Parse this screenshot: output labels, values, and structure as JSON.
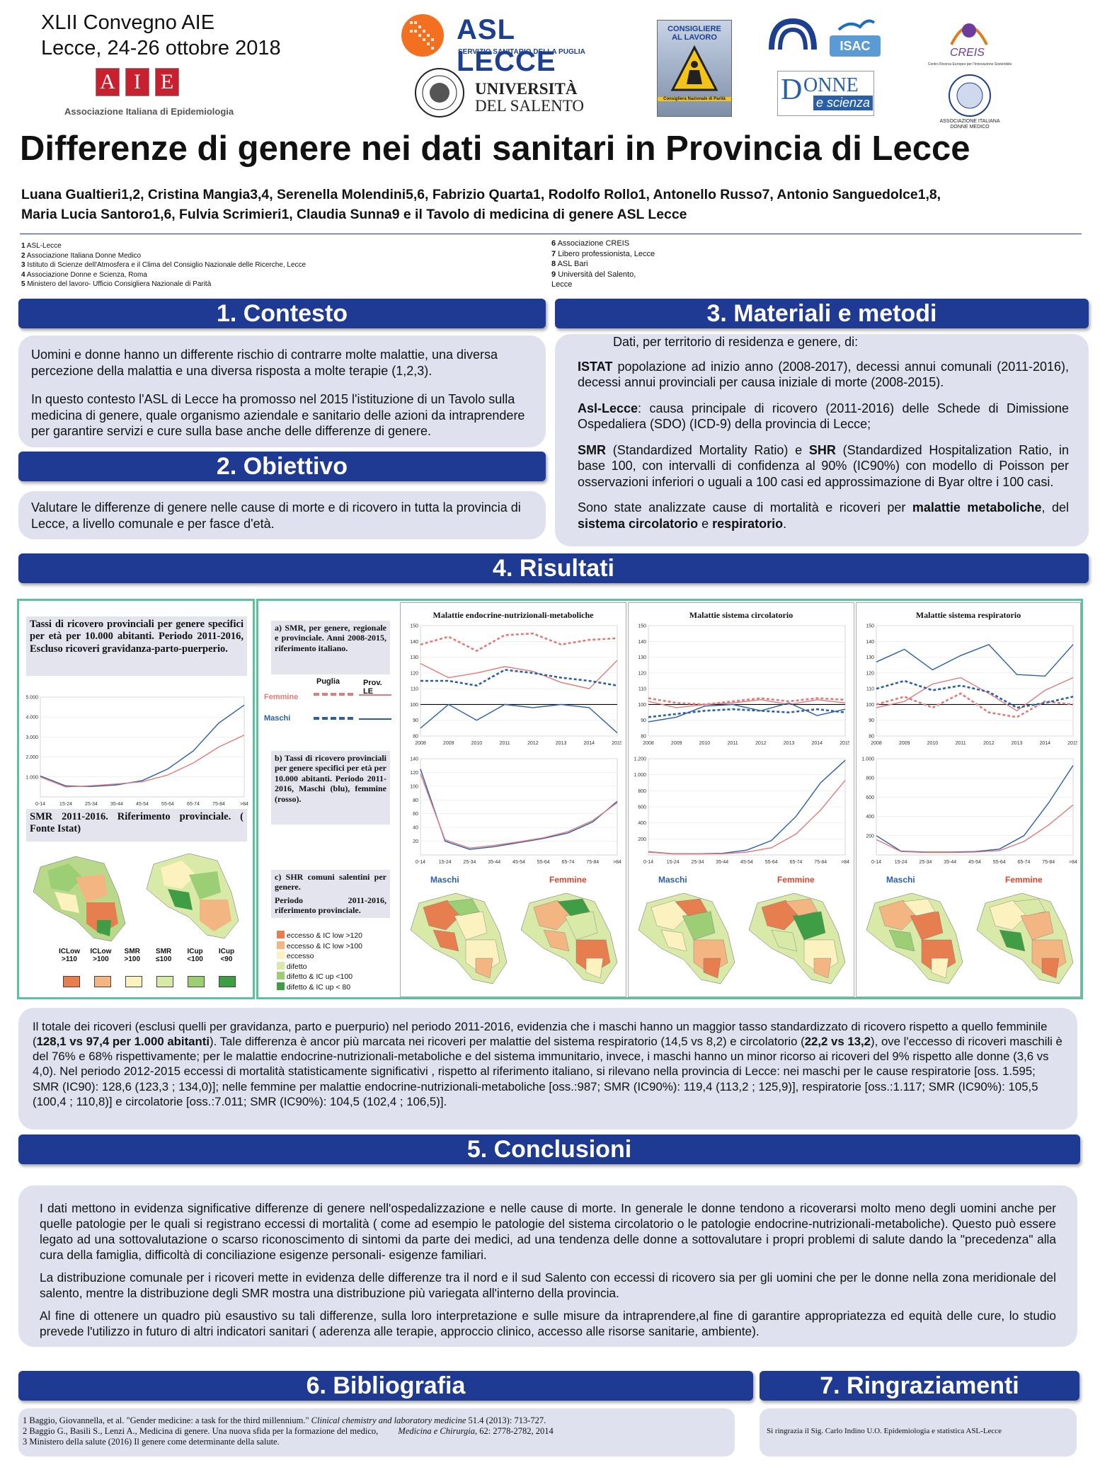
{
  "header": {
    "conference_line1": "XLII Convegno AIE",
    "conference_line2": "Lecce, 24-26 ottobre 2018",
    "aie_letters": [
      "A",
      "I",
      "E"
    ],
    "aie_name": "Associazione Italiana di Epidemiologia",
    "asl_name": "ASL LECCE",
    "asl_sub": "SERVIZIO SANITARIO DELLA PUGLIA",
    "unisalento_line1": "UNIVERSITÀ",
    "unisalento_line2": "DEL SALENTO",
    "consigliere_line1": "CONSIGLIERE",
    "consigliere_line2": "AL LAVORO",
    "consigliere_sub": "Consigliera Nazionale di Parità",
    "isac": "ISAC",
    "donne_scienza_line1": "ONNE",
    "donne_scienza_line2": "e scienza",
    "creis": "CREIS",
    "creis_sub": "Centro Ricerca Europeo per l'Innovazione Sostenibile",
    "aidm_line1": "ASSOCIAZIONE ITALIANA",
    "aidm_line2": "DONNE MEDICO"
  },
  "title": "Differenze di genere nei dati sanitari in Provincia di Lecce",
  "authors_line1": "Luana Gualtieri1,2, Cristina Mangia3,4, Serenella Molendini5,6, Fabrizio Quarta1,  Rodolfo Rollo1, Antonello Russo7, Antonio Sanguedolce1,8,",
  "authors_line2": "Maria Lucia Santoro1,6, Fulvia Scrimieri1, Claudia Sunna9 e il Tavolo di medicina di genere ASL Lecce",
  "affiliations_left": [
    {
      "num": "1",
      "text": "ASL-Lecce"
    },
    {
      "num": "2",
      "text": "Associazione Italiana Donne Medico"
    },
    {
      "num": "3",
      "text": "Istituto di Scienze dell'Atmosfera e il Clima del Consiglio Nazionale delle Ricerche, Lecce"
    },
    {
      "num": "4",
      "text": "Associazione Donne e Scienza, Roma"
    },
    {
      "num": "5",
      "text": "Ministero del lavoro- Ufficio Consigliera Nazionale di Parità"
    }
  ],
  "affiliations_right": [
    {
      "num": "6",
      "text": "Associazione CREIS"
    },
    {
      "num": "7",
      "text": "Libero professionista, Lecce"
    },
    {
      "num": "8",
      "text": "ASL Bari"
    },
    {
      "num": "9",
      "text": "Università del Salento,"
    },
    {
      "num": "",
      "text": "Lecce"
    }
  ],
  "sections": {
    "contesto": "1. Contesto",
    "obiettivo": "2. Obiettivo",
    "materiali": "3. Materiali e metodi",
    "risultati": "4. Risultati",
    "conclusioni": "5. Conclusioni",
    "bibliografia": "6. Bibliografia",
    "ringraziamenti": "7. Ringraziamenti"
  },
  "contesto_p1": "Uomini e donne hanno un differente rischio di contrarre molte malattie, una diversa percezione della malattia e una diversa risposta a molte terapie (1,2,3).",
  "contesto_p2": "In questo contesto l'ASL di Lecce ha promosso nel 2015 l'istituzione di un Tavolo sulla medicina di genere, quale organismo aziendale e sanitario delle azioni da intraprendere per garantire servizi e cure sulla base anche delle differenze di genere.",
  "obiettivo_text": "Valutare le differenze di genere nelle cause di morte e di ricovero in tutta la provincia di Lecce, a livello comunale  e per fasce d'età.",
  "materiali": {
    "intro": "Dati, per territorio di residenza e genere, di:",
    "istat_b": "ISTAT",
    "istat": " popolazione ad inizio anno (2008-2017), decessi annui comunali (2011-2016), decessi annui provinciali per causa iniziale di morte (2008-2015).",
    "asl_b": "Asl-Lecce",
    "asl": ": causa principale di ricovero (2011-2016) delle Schede di Dimissione Ospedaliera (SDO) (ICD-9) della provincia di Lecce;",
    "smr_b": "SMR",
    "smr1": " (Standardized Mortality Ratio) e ",
    "shr_b": "SHR",
    "smr2": " (Standardized Hospitalization Ratio, in base 100, con intervalli di confidenza al 90% (IC90%) con modello di Poisson per osservazioni inferiori o uguali a 100 casi ed approssimazione di Byar oltre i 100 casi.",
    "cause1": "Sono state analizzate cause di mortalità e ricoveri per ",
    "cause_b1": "malattie metaboliche",
    "cause2": ", del ",
    "cause_b2": "sistema circolatorio",
    "cause3": " e ",
    "cause_b3": "respiratorio",
    "cause4": "."
  },
  "risultati": {
    "left_caption": "Tassi di ricovero provinciali per genere specifici per età per 10.000 abitanti. Periodo 2011-2016, Escluso ricoveri gravidanza-parto-puerperio.",
    "smr_caption": "SMR 2011-2016. Riferimento provinciale. ( Fonte Istat)",
    "legend_small": [
      "ICLow >110",
      "ICLow >100",
      "SMR >100",
      "SMR ≤100",
      "ICup <100",
      "ICup <90"
    ],
    "caption_a": "a) SMR, per genere, regionale e provinciale. Anni 2008-2015, riferimento italiano.",
    "legend_puglia": "Puglia",
    "legend_prov": "Prov. LE",
    "legend_femmine": "Femmine",
    "legend_maschi": "Maschi",
    "caption_b": "b) Tassi di ricovero provinciali per genere specifici per età per 10.000 abitanti. Periodo 2011-2016, Maschi (blu), femmine (rosso).",
    "caption_c1": "c) SHR comuni salentini per genere.",
    "caption_c2": "Periodo 2011-2016, riferimento provinciale.",
    "shr_legend": [
      "eccesso & IC low >120",
      "eccesso & IC low >100",
      "eccesso",
      "difetto",
      "difetto & IC up <100",
      "difetto & IC up < 80"
    ],
    "map_maschi": "Maschi",
    "map_femmine": "Femmine",
    "summary_1": "Il totale dei ricoveri (esclusi quelli per gravidanza, parto e puerpurio) nel periodo 2011-2016, evidenzia che i maschi hanno un maggior tasso standardizzato di ricovero rispetto a quello femminile (",
    "summary_b1": "128,1 vs 97,4 per 1.000 abitanti",
    "summary_2": "). Tale differenza è ancor più marcata nei ricoveri per malattie del sistema respiratorio (14,5 vs 8,2) e circolatorio (",
    "summary_b2": "22,2 vs 13,2",
    "summary_3": "), ove l'eccesso di ricoveri maschili è del 76% e 68% rispettivamente; per le malattie endocrine-nutrizionali-metaboliche e del sistema immunitario, invece, i maschi hanno un minor ricorso ai ricoveri del 9% rispetto alle donne (3,6 vs 4,0). Nel periodo 2012-2015 eccessi di mortalità statisticamente significativi , rispetto al riferimento italiano, si rilevano nella provincia di Lecce: nei maschi per le cause respiratorie [oss. 1.595; SMR (IC90): 128,6 (123,3 ; 134,0)]; nelle femmine per malattie endocrine-nutrizionali-metaboliche [oss.:987; SMR (IC90%): 119,4 (113,2 ; 125,9)], respiratorie [oss.:1.117; SMR (IC90%): 105,5 (100,4 ; 110,8)] e circolatorie [oss.:7.011; SMR (IC90%): 104,5 (102,4 ; 106,5)]."
  },
  "conclusioni": {
    "p1": "I dati mettono in evidenza significative differenze di genere nell'ospedalizzazione e nelle cause di morte. In generale le donne tendono a ricoverarsi molto meno degli uomini anche per quelle patologie per le quali si registrano eccessi di mortalità ( come ad esempio le patologie del sistema circolatorio o le patologie endocrine-nutrizionali-metaboliche). Questo può essere legato ad una sottovalutazione o scarso riconoscimento di sintomi da parte dei medici, ad una tendenza delle donne a sottovalutare i propri problemi di salute dando la \"precedenza\" alla cura della famiglia, difficoltà di conciliazione esigenze personali- esigenze familiari.",
    "p2": "La distribuzione comunale per i ricoveri mette in evidenza delle differenze tra il nord e il sud Salento con eccessi di ricovero sia per gli uomini che per le donne nella zona meridionale del salento, mentre la distribuzione degli SMR mostra una distribuzione più variegata all'interno della provincia.",
    "p3": "Al fine di ottenere un quadro più esaustivo su tali differenze, sulla loro interpretazione e sulle misure da intraprendere,al fine di garantire appropriatezza ed equità delle cure, lo studio prevede l'utilizzo in futuro di altri indicatori sanitari ( aderenza alle terapie,  approccio clinico, accesso alle risorse sanitarie, ambiente)."
  },
  "bibliografia": [
    {
      "pre": "1 Baggio, Giovannella, et al. \"Gender medicine: a task for the third millennium.\" ",
      "it": "Clinical chemistry and laboratory medicine",
      "post": " 51.4 (2013): 713-727."
    },
    {
      "pre": "2 Baggio G., Basili S., Lenzi A., Medicina di genere. Una nuova sfida per la formazione del medico,         ",
      "it": "Medicina e Chirurgia",
      "post": ", 62: 2778-2782, 2014"
    },
    {
      "pre": "3 Ministero della salute (2016) Il genere come determinante della salute.",
      "it": "",
      "post": ""
    }
  ],
  "ringraziamenti": "Si ringrazia il Sig. Carlo Indino U.O. Epidemiologia e statistica ASL-Lecce",
  "chart_data": [
    {
      "type": "line",
      "title": "",
      "categories": [
        "0-14",
        "15-24",
        "25-34",
        "35-44",
        "45-54",
        "55-64",
        "65-74",
        "75-84",
        ">84"
      ],
      "y_ticks": [
        "1.000",
        "2.000",
        "3.000",
        "4.000",
        "5.000"
      ],
      "ylim": [
        0,
        5000
      ],
      "series": [
        {
          "color": "#2a5fa8",
          "values": [
            1050,
            550,
            520,
            600,
            820,
            1400,
            2300,
            3700,
            4600
          ]
        },
        {
          "color": "#e07b7b",
          "values": [
            1000,
            500,
            560,
            650,
            760,
            1100,
            1700,
            2500,
            3100
          ]
        }
      ]
    },
    {
      "type": "line",
      "title": "Malattie endocrine-nutrizionali-metaboliche",
      "x": [
        "2008",
        "2009",
        "2010",
        "2011",
        "2012",
        "2013",
        "2014",
        "2015"
      ],
      "y_ticks": [
        "80",
        "90",
        "100",
        "110",
        "120",
        "130",
        "140",
        "150"
      ],
      "ylim": [
        80,
        150
      ],
      "series": [
        {
          "color": "#e07b7b",
          "dashed": true,
          "values": [
            138,
            143,
            134,
            144,
            145,
            138,
            141,
            142
          ]
        },
        {
          "color": "#e07b7b",
          "dashed": false,
          "values": [
            126,
            117,
            120,
            124,
            121,
            114,
            110,
            128
          ]
        },
        {
          "color": "#2a5fa8",
          "dashed": true,
          "values": [
            115,
            115,
            112,
            122,
            120,
            117,
            115,
            112
          ]
        },
        {
          "color": "#2a5fa8",
          "dashed": false,
          "values": [
            85,
            100,
            90,
            100,
            98,
            100,
            98,
            82
          ]
        }
      ]
    },
    {
      "type": "line",
      "title": "Malattie sistema circolatorio",
      "x": [
        "2008",
        "2009",
        "2010",
        "2011",
        "2012",
        "2013",
        "2014",
        "2015"
      ],
      "y_ticks": [
        "80",
        "90",
        "100",
        "110",
        "120",
        "130",
        "140",
        "150"
      ],
      "ylim": [
        80,
        150
      ],
      "series": [
        {
          "color": "#e07b7b",
          "dashed": true,
          "values": [
            104,
            101,
            100,
            102,
            104,
            102,
            104,
            103
          ]
        },
        {
          "color": "#e07b7b",
          "dashed": false,
          "values": [
            102,
            98,
            100,
            101,
            103,
            100,
            103,
            101
          ]
        },
        {
          "color": "#2a5fa8",
          "dashed": true,
          "values": [
            92,
            94,
            96,
            97,
            96,
            95,
            97,
            95
          ]
        },
        {
          "color": "#2a5fa8",
          "dashed": false,
          "values": [
            89,
            92,
            99,
            100,
            96,
            101,
            93,
            97
          ]
        }
      ]
    },
    {
      "type": "line",
      "title": "Malattie sistema respiratorio",
      "x": [
        "2008",
        "2009",
        "2010",
        "2011",
        "2012",
        "2013",
        "2014",
        "2015"
      ],
      "y_ticks": [
        "80",
        "90",
        "100",
        "110",
        "120",
        "130",
        "140",
        "150"
      ],
      "ylim": [
        80,
        150
      ],
      "series": [
        {
          "color": "#e07b7b",
          "dashed": true,
          "values": [
            100,
            105,
            98,
            107,
            95,
            92,
            102,
            100
          ]
        },
        {
          "color": "#e07b7b",
          "dashed": false,
          "values": [
            98,
            102,
            113,
            117,
            107,
            96,
            109,
            117
          ]
        },
        {
          "color": "#2a5fa8",
          "dashed": true,
          "values": [
            110,
            115,
            109,
            112,
            108,
            98,
            101,
            105
          ]
        },
        {
          "color": "#2a5fa8",
          "dashed": false,
          "values": [
            127,
            135,
            122,
            131,
            138,
            119,
            118,
            138
          ]
        }
      ]
    },
    {
      "type": "line",
      "title": "",
      "categories": [
        "0-14",
        "15-24",
        "25-34",
        "35-44",
        "45-54",
        "55-64",
        "65-74",
        "75-84",
        ">84"
      ],
      "y_ticks": [
        "20",
        "40",
        "60",
        "80",
        "100",
        "120",
        "140"
      ],
      "ylim": [
        0,
        140
      ],
      "series": [
        {
          "color": "#2a5fa8",
          "values": [
            125,
            20,
            8,
            12,
            18,
            24,
            32,
            48,
            78
          ]
        },
        {
          "color": "#e07b7b",
          "values": [
            118,
            22,
            10,
            14,
            19,
            25,
            34,
            50,
            76
          ]
        }
      ]
    },
    {
      "type": "line",
      "title": "",
      "categories": [
        "0-14",
        "15-24",
        "25-34",
        "35-44",
        "45-54",
        "55-64",
        "65-74",
        "75-84",
        ">84"
      ],
      "y_ticks": [
        "200",
        "400",
        "600",
        "800",
        "1.000",
        "1.200"
      ],
      "ylim": [
        0,
        1200
      ],
      "series": [
        {
          "color": "#2a5fa8",
          "values": [
            40,
            15,
            15,
            20,
            60,
            180,
            480,
            900,
            1180
          ]
        },
        {
          "color": "#e07b7b",
          "values": [
            35,
            12,
            12,
            15,
            35,
            90,
            260,
            560,
            930
          ]
        }
      ]
    },
    {
      "type": "line",
      "title": "",
      "categories": [
        "0-14",
        "15-24",
        "25-34",
        "35-44",
        "45-54",
        "55-64",
        "65-74",
        "75-84",
        ">84"
      ],
      "y_ticks": [
        "200",
        "400",
        "600",
        "800",
        "1.000"
      ],
      "ylim": [
        0,
        1000
      ],
      "series": [
        {
          "color": "#2a5fa8",
          "values": [
            200,
            40,
            30,
            30,
            35,
            60,
            200,
            540,
            930
          ]
        },
        {
          "color": "#e07b7b",
          "values": [
            160,
            35,
            25,
            25,
            30,
            45,
            140,
            310,
            520
          ]
        }
      ]
    }
  ],
  "colors": {
    "bar_blue": "#1f3a93",
    "panel_bg": "#dfe1ef",
    "green_frame": "#5bc39b",
    "map_scale": [
      "#e67e4f",
      "#f3b582",
      "#fbf2c0",
      "#d8e9a8",
      "#9ccf75",
      "#3f9e45"
    ]
  }
}
